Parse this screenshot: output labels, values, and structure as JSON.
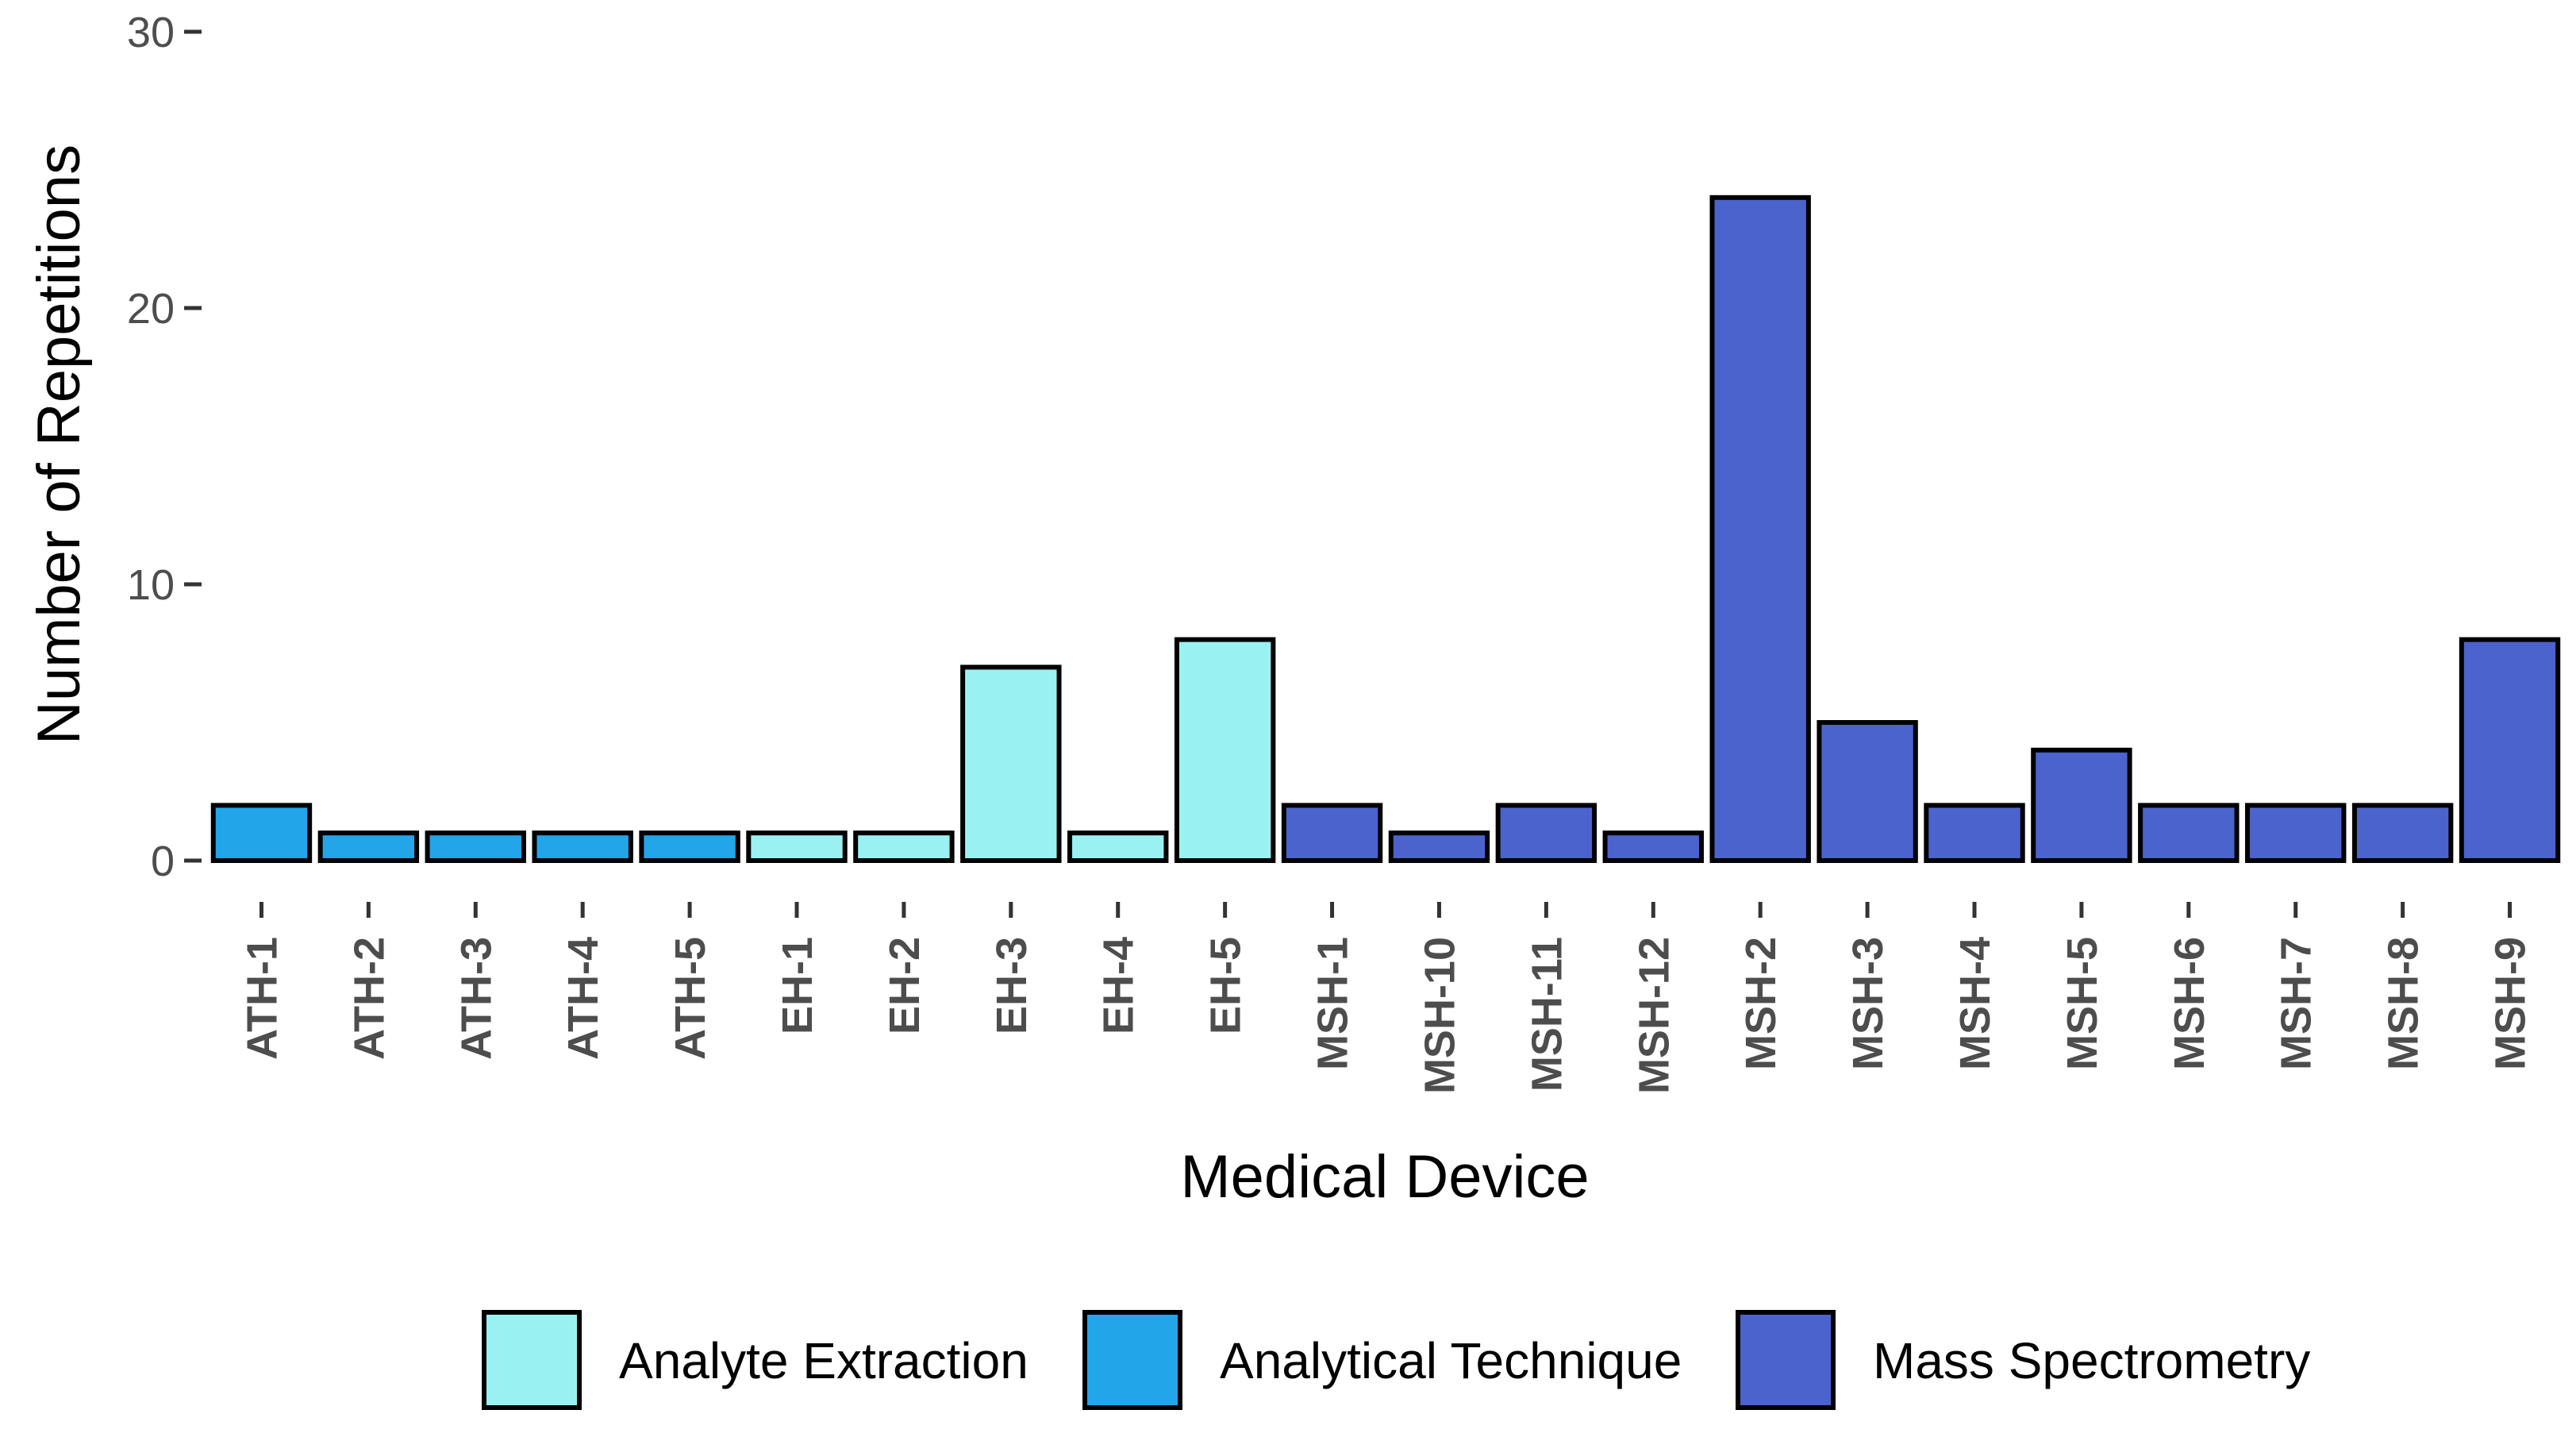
{
  "chart_data": {
    "type": "bar",
    "title": "",
    "xlabel": "Medical Device",
    "ylabel": "Number of Repetitions",
    "ylim": [
      0,
      30
    ],
    "yticks": [
      0,
      10,
      20,
      30
    ],
    "grid": false,
    "legend_position": "bottom",
    "categories": [
      "ATH-1",
      "ATH-2",
      "ATH-3",
      "ATH-4",
      "ATH-5",
      "EH-1",
      "EH-2",
      "EH-3",
      "EH-4",
      "EH-5",
      "MSH-1",
      "MSH-10",
      "MSH-11",
      "MSH-12",
      "MSH-2",
      "MSH-3",
      "MSH-4",
      "MSH-5",
      "MSH-6",
      "MSH-7",
      "MSH-8",
      "MSH-9"
    ],
    "values": [
      2,
      1,
      1,
      1,
      1,
      1,
      1,
      7,
      1,
      8,
      2,
      1,
      2,
      1,
      24,
      5,
      2,
      4,
      2,
      2,
      2,
      8
    ],
    "groups": [
      "Analytical Technique",
      "Analytical Technique",
      "Analytical Technique",
      "Analytical Technique",
      "Analytical Technique",
      "Analyte Extraction",
      "Analyte Extraction",
      "Analyte Extraction",
      "Analyte Extraction",
      "Analyte Extraction",
      "Mass Spectrometry",
      "Mass Spectrometry",
      "Mass Spectrometry",
      "Mass Spectrometry",
      "Mass Spectrometry",
      "Mass Spectrometry",
      "Mass Spectrometry",
      "Mass Spectrometry",
      "Mass Spectrometry",
      "Mass Spectrometry",
      "Mass Spectrometry",
      "Mass Spectrometry"
    ],
    "legend": [
      {
        "name": "Analyte Extraction",
        "color": "#9af1f2"
      },
      {
        "name": "Analytical Technique",
        "color": "#22a5e9"
      },
      {
        "name": "Mass Spectrometry",
        "color": "#4b63cc"
      }
    ]
  }
}
